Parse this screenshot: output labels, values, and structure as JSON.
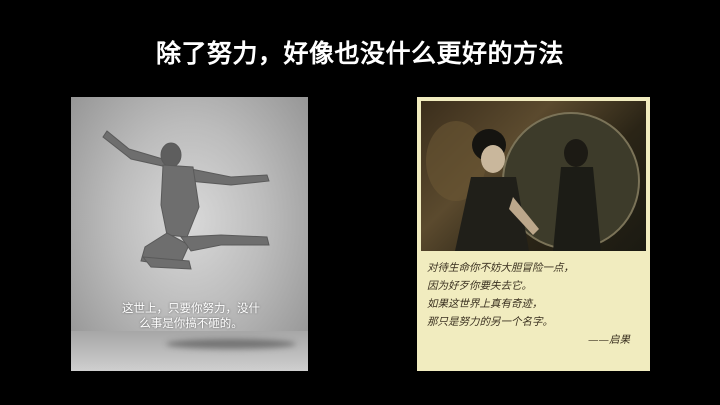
{
  "slide": {
    "title": "除了努力，好像也没什么更好的方法"
  },
  "left_image": {
    "caption_line1": "这世上，只要你努力，没什",
    "caption_line2": "么事是你搞不砸的。"
  },
  "right_image": {
    "poem_lines": [
      "对待生命你不妨大胆冒险一点，",
      "因为好歹你要失去它。",
      "如果这世界上真有奇迹，",
      "那只是努力的另一个名字。"
    ],
    "signature": "——启果"
  }
}
